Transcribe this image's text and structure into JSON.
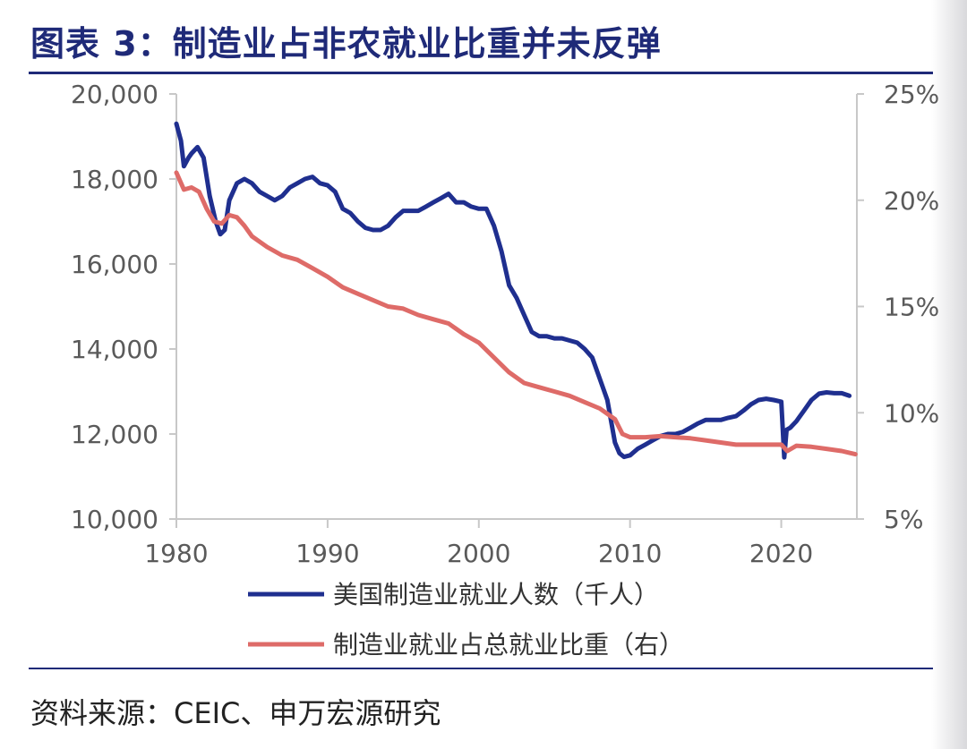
{
  "figure": {
    "title": "图表 3：制造业占非农就业比重并未反弹",
    "source": "资料来源：CEIC、申万宏源研究"
  },
  "chart_data": {
    "type": "line",
    "x_axis": {
      "range": [
        1980,
        2025
      ],
      "ticks": [
        1980,
        1990,
        2000,
        2010,
        2020
      ],
      "tick_labels": [
        "1980",
        "1990",
        "2000",
        "2010",
        "2020"
      ]
    },
    "y_left": {
      "range": [
        10000,
        20000
      ],
      "ticks": [
        10000,
        12000,
        14000,
        16000,
        18000,
        20000
      ],
      "tick_labels": [
        "10,000",
        "12,000",
        "14,000",
        "16,000",
        "18,000",
        "20,000"
      ]
    },
    "y_right": {
      "range": [
        5,
        25
      ],
      "ticks": [
        5,
        10,
        15,
        20,
        25
      ],
      "tick_labels": [
        "5%",
        "10%",
        "15%",
        "20%",
        "25%"
      ]
    },
    "grid": false,
    "legend_position": "bottom",
    "series": [
      {
        "name": "美国制造业就业人数（千人）",
        "axis": "left",
        "color": "#1f2f8f",
        "x": [
          1980.0,
          1980.3,
          1980.5,
          1980.8,
          1981.0,
          1981.4,
          1981.8,
          1982.2,
          1982.6,
          1982.9,
          1983.2,
          1983.5,
          1984.0,
          1984.5,
          1985.0,
          1985.5,
          1986.0,
          1986.5,
          1987.0,
          1987.5,
          1988.0,
          1988.5,
          1989.0,
          1989.5,
          1990.0,
          1990.5,
          1991.0,
          1991.5,
          1992.0,
          1992.5,
          1993.0,
          1993.5,
          1994.0,
          1994.5,
          1995.0,
          1995.5,
          1996.0,
          1996.5,
          1997.0,
          1997.5,
          1998.0,
          1998.5,
          1999.0,
          1999.5,
          2000.0,
          2000.5,
          2001.0,
          2001.5,
          2002.0,
          2002.5,
          2003.0,
          2003.5,
          2004.0,
          2004.5,
          2005.0,
          2005.5,
          2006.0,
          2006.5,
          2007.0,
          2007.5,
          2008.0,
          2008.5,
          2009.0,
          2009.3,
          2009.6,
          2010.0,
          2010.5,
          2011.0,
          2011.5,
          2012.0,
          2012.5,
          2013.0,
          2013.5,
          2014.0,
          2014.5,
          2015.0,
          2015.5,
          2016.0,
          2016.5,
          2017.0,
          2017.5,
          2018.0,
          2018.5,
          2019.0,
          2019.5,
          2020.0,
          2020.2,
          2020.35,
          2020.6,
          2021.0,
          2021.5,
          2022.0,
          2022.5,
          2023.0,
          2023.5,
          2024.0,
          2024.5
        ],
        "values": [
          19300,
          18900,
          18300,
          18500,
          18600,
          18750,
          18500,
          17600,
          17000,
          16700,
          16800,
          17500,
          17900,
          18000,
          17900,
          17700,
          17600,
          17500,
          17600,
          17800,
          17900,
          18000,
          18050,
          17900,
          17850,
          17700,
          17300,
          17200,
          17000,
          16850,
          16800,
          16800,
          16900,
          17100,
          17250,
          17250,
          17250,
          17350,
          17450,
          17550,
          17650,
          17450,
          17450,
          17350,
          17300,
          17300,
          16900,
          16300,
          15500,
          15200,
          14800,
          14400,
          14300,
          14300,
          14250,
          14250,
          14200,
          14150,
          14000,
          13800,
          13300,
          12800,
          11800,
          11550,
          11460,
          11500,
          11650,
          11750,
          11850,
          11950,
          12000,
          12000,
          12050,
          12150,
          12250,
          12330,
          12330,
          12330,
          12380,
          12420,
          12550,
          12700,
          12800,
          12830,
          12800,
          12760,
          11450,
          12100,
          12150,
          12300,
          12550,
          12800,
          12950,
          12980,
          12960,
          12960,
          12900
        ]
      },
      {
        "name": "制造业就业占总就业比重（右）",
        "axis": "right",
        "color": "#de6b68",
        "x": [
          1980.0,
          1980.5,
          1981.0,
          1981.5,
          1982.0,
          1982.5,
          1983.0,
          1983.5,
          1984.0,
          1984.5,
          1985.0,
          1986.0,
          1987.0,
          1988.0,
          1989.0,
          1990.0,
          1991.0,
          1992.0,
          1993.0,
          1994.0,
          1995.0,
          1996.0,
          1997.0,
          1998.0,
          1999.0,
          2000.0,
          2001.0,
          2002.0,
          2003.0,
          2004.0,
          2005.0,
          2006.0,
          2007.0,
          2008.0,
          2009.0,
          2009.5,
          2010.0,
          2011.0,
          2012.0,
          2013.0,
          2014.0,
          2015.0,
          2016.0,
          2017.0,
          2018.0,
          2019.0,
          2020.0,
          2020.4,
          2021.0,
          2022.0,
          2023.0,
          2024.0,
          2024.9
        ],
        "values": [
          21.3,
          20.5,
          20.6,
          20.4,
          19.6,
          19.0,
          18.9,
          19.3,
          19.2,
          18.8,
          18.3,
          17.8,
          17.4,
          17.2,
          16.8,
          16.4,
          15.9,
          15.6,
          15.3,
          15.0,
          14.9,
          14.6,
          14.4,
          14.2,
          13.7,
          13.3,
          12.6,
          11.9,
          11.4,
          11.2,
          11.0,
          10.8,
          10.5,
          10.2,
          9.7,
          9.0,
          8.85,
          8.85,
          8.9,
          8.85,
          8.8,
          8.7,
          8.6,
          8.5,
          8.5,
          8.5,
          8.5,
          8.2,
          8.45,
          8.4,
          8.3,
          8.2,
          8.05
        ]
      }
    ]
  }
}
